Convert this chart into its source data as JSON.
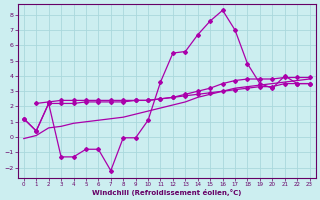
{
  "xlabel": "Windchill (Refroidissement éolien,°C)",
  "background_color": "#cceef0",
  "grid_color": "#aad8dc",
  "line_color": "#aa00aa",
  "xlim": [
    -0.5,
    23.5
  ],
  "ylim": [
    -2.7,
    8.7
  ],
  "yticks": [
    -2,
    -1,
    0,
    1,
    2,
    3,
    4,
    5,
    6,
    7,
    8
  ],
  "xticks": [
    0,
    1,
    2,
    3,
    4,
    5,
    6,
    7,
    8,
    9,
    10,
    11,
    12,
    13,
    14,
    15,
    16,
    17,
    18,
    19,
    20,
    21,
    22,
    23
  ],
  "line1_x": [
    0,
    1,
    2,
    3,
    4,
    5,
    6,
    7,
    8,
    9,
    10,
    11,
    12,
    13,
    14,
    15,
    16,
    17,
    18,
    19,
    20,
    21,
    22,
    23
  ],
  "line1_y": [
    1.2,
    0.4,
    2.2,
    -1.3,
    -1.3,
    -0.8,
    -0.8,
    -2.2,
    -0.05,
    -0.05,
    1.1,
    3.6,
    5.5,
    5.6,
    6.7,
    7.6,
    8.3,
    7.0,
    4.8,
    3.5,
    3.2,
    4.0,
    3.5,
    3.5
  ],
  "line2_x": [
    1,
    2,
    3,
    4,
    5,
    6,
    7,
    8,
    9,
    10,
    11,
    12,
    13,
    14,
    15,
    16,
    17,
    18,
    19,
    20,
    21,
    22,
    23
  ],
  "line2_y": [
    2.2,
    2.3,
    2.4,
    2.4,
    2.4,
    2.4,
    2.4,
    2.4,
    2.4,
    2.4,
    2.5,
    2.6,
    2.7,
    2.8,
    2.9,
    3.0,
    3.1,
    3.2,
    3.3,
    3.3,
    3.5,
    3.5,
    3.5
  ],
  "line3_x": [
    0,
    1,
    2,
    3,
    4,
    5,
    6,
    7,
    8,
    9,
    10,
    11,
    12,
    13,
    14,
    15,
    16,
    17,
    18,
    19,
    20,
    21,
    22,
    23
  ],
  "line3_y": [
    1.2,
    0.4,
    2.2,
    2.2,
    2.2,
    2.3,
    2.3,
    2.3,
    2.3,
    2.4,
    2.4,
    2.5,
    2.6,
    2.8,
    3.0,
    3.2,
    3.5,
    3.7,
    3.8,
    3.8,
    3.8,
    3.9,
    3.9,
    3.9
  ],
  "line4_x": [
    0,
    1,
    2,
    3,
    4,
    5,
    6,
    7,
    8,
    9,
    10,
    11,
    12,
    13,
    14,
    15,
    16,
    17,
    18,
    19,
    20,
    21,
    22,
    23
  ],
  "line4_y": [
    -0.1,
    0.1,
    0.6,
    0.7,
    0.9,
    1.0,
    1.1,
    1.2,
    1.3,
    1.5,
    1.7,
    1.9,
    2.1,
    2.3,
    2.6,
    2.8,
    3.0,
    3.2,
    3.3,
    3.4,
    3.5,
    3.6,
    3.7,
    3.8
  ]
}
